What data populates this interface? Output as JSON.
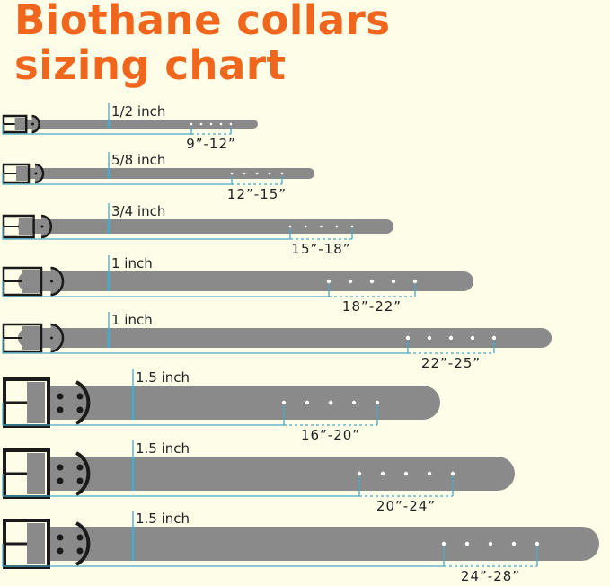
{
  "title": {
    "line1": "Biothane collars",
    "line2": "sizing chart"
  },
  "colors": {
    "title": "#f0661c",
    "background": "#fdfde8",
    "strap": "#8a8a8a",
    "hardware": "#1a1a1a",
    "measure_line": "#4aa8c8"
  },
  "collars": [
    {
      "width": "1/2 inch",
      "size_range": "9”-12”",
      "holes": 5
    },
    {
      "width": "5/8 inch",
      "size_range": "12”-15”",
      "holes": 5
    },
    {
      "width": "3/4 inch",
      "size_range": "15”-18”",
      "holes": 5
    },
    {
      "width": "1 inch",
      "size_range": "18”-22”",
      "holes": 5
    },
    {
      "width": "1 inch",
      "size_range": "22”-25”",
      "holes": 5
    },
    {
      "width": "1.5 inch",
      "size_range": "16”-20”",
      "holes": 5
    },
    {
      "width": "1.5 inch",
      "size_range": "20”-24”",
      "holes": 5
    },
    {
      "width": "1.5 inch",
      "size_range": "24”-28”",
      "holes": 5
    }
  ]
}
